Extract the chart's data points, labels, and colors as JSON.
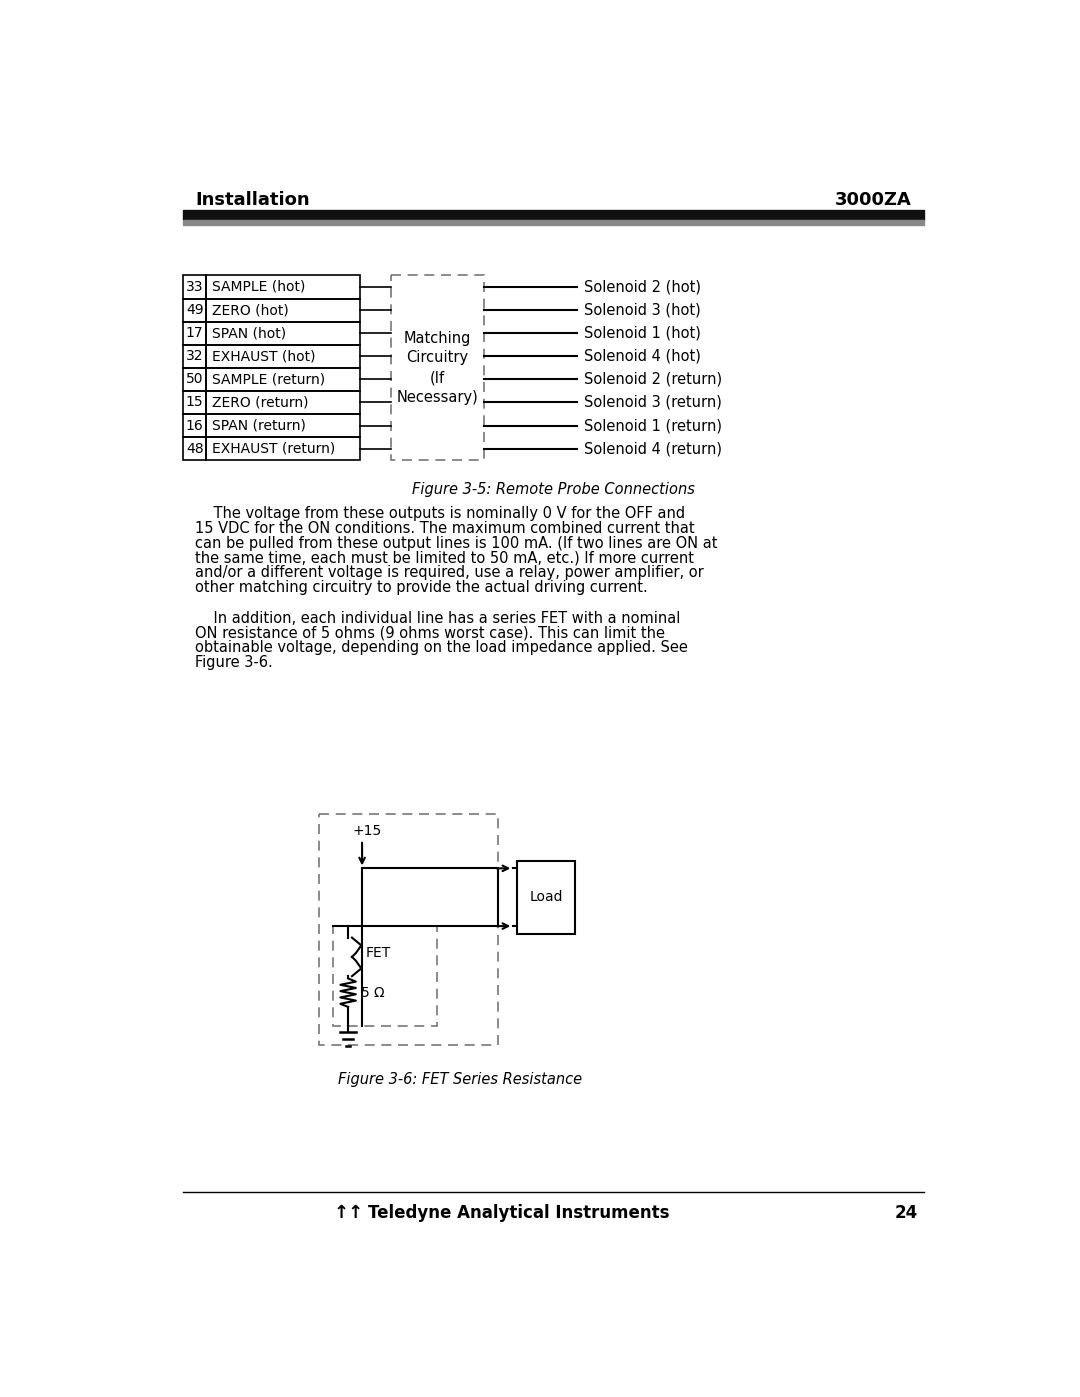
{
  "title_left": "Installation",
  "title_right": "3000ZA",
  "header_bar_color": "#111111",
  "header_bar2_color": "#888888",
  "bg_color": "#ffffff",
  "pin_numbers": [
    "33",
    "49",
    "17",
    "32",
    "50",
    "15",
    "16",
    "48"
  ],
  "left_labels": [
    "SAMPLE (hot)",
    "ZERO (hot)",
    "SPAN (hot)",
    "EXHAUST (hot)",
    "SAMPLE (return)",
    "ZERO (return)",
    "SPAN (return)",
    "EXHAUST (return)"
  ],
  "right_labels": [
    "Solenoid 2 (hot)",
    "Solenoid 3 (hot)",
    "Solenoid 1 (hot)",
    "Solenoid 4 (hot)",
    "Solenoid 2 (return)",
    "Solenoid 3 (return)",
    "Solenoid 1 (return)",
    "Solenoid 4 (return)"
  ],
  "matching_circuitry_text": "Matching\nCircuitry\n(If\nNecessary)",
  "figure3_5_caption": "Figure 3-5: Remote Probe Connections",
  "paragraph1_lines": [
    "    The voltage from these outputs is nominally 0 V for the OFF and",
    "15 VDC for the ON conditions. The maximum combined current that",
    "can be pulled from these output lines is 100 mA. (If two lines are ON at",
    "the same time, each must be limited to 50 mA, etc.) If more current",
    "and/or a different voltage is required, use a relay, power amplifier, or",
    "other matching circuitry to provide the actual driving current."
  ],
  "paragraph2_lines": [
    "    In addition, each individual line has a series FET with a nominal",
    "ON resistance of 5 ohms (9 ohms worst case). This can limit the",
    "obtainable voltage, depending on the load impedance applied. See",
    "Figure 3-6."
  ],
  "figure3_6_caption": "Figure 3-6: FET Series Resistance",
  "footer_text": "Teledyne Analytical Instruments",
  "footer_page": "24",
  "text_color": "#000000",
  "dashed_border_color": "#777777",
  "line_color": "#000000"
}
